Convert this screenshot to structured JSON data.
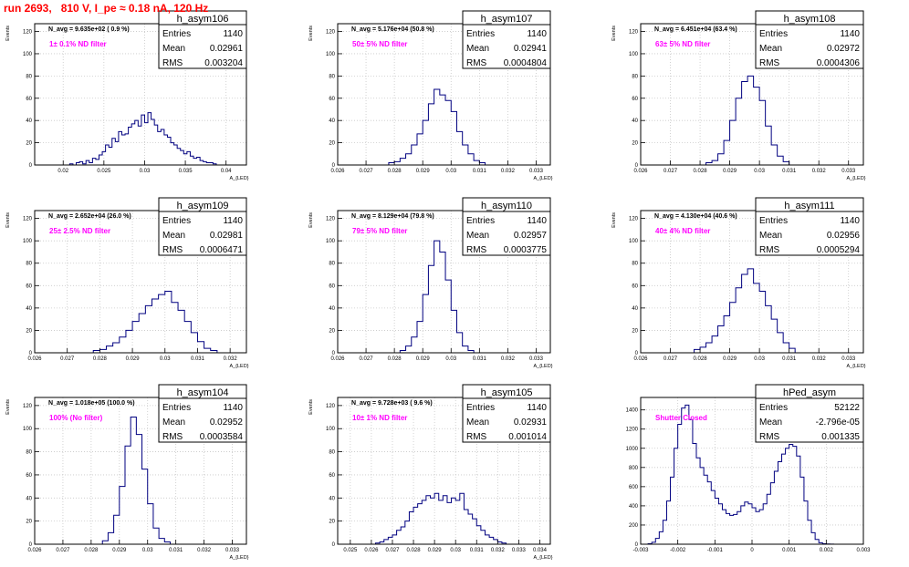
{
  "page_title": "run 2693,   810 V, I_pe ≈ 0.18 nA, 120 Hz",
  "colors": {
    "title": "#ff0000",
    "annotation": "#ff00ff",
    "histogram": "#000080",
    "grid": "#c8c8c8",
    "frame": "#000000"
  },
  "chart_data": [
    {
      "type": "histogram",
      "name": "h_asym106",
      "stats": {
        "Entries": "1140",
        "Mean": "0.02961",
        "RMS": "0.003204"
      },
      "navg": "N_avg = 9.635e+02 ( 0.9 %)",
      "note": "1± 0.1% ND filter",
      "ylabel": "Events",
      "xlabel": "A_{LED}",
      "xticks": [
        {
          "v": 0.02,
          "l": "0.02"
        },
        {
          "v": 0.025,
          "l": "0.025"
        },
        {
          "v": 0.03,
          "l": "0.03"
        },
        {
          "v": 0.035,
          "l": "0.035"
        },
        {
          "v": 0.04,
          "l": "0.04"
        }
      ],
      "yticks": [
        {
          "v": 0,
          "l": "0"
        },
        {
          "v": 20,
          "l": "20"
        },
        {
          "v": 40,
          "l": "40"
        },
        {
          "v": 60,
          "l": "60"
        },
        {
          "v": 80,
          "l": "80"
        },
        {
          "v": 100,
          "l": "100"
        },
        {
          "v": 120,
          "l": "120"
        }
      ],
      "xlim": [
        0.0165,
        0.0425
      ],
      "ylim": [
        0,
        127
      ],
      "x": [
        0.0208,
        0.0212,
        0.0216,
        0.022,
        0.0224,
        0.0228,
        0.0232,
        0.0236,
        0.024,
        0.0244,
        0.0248,
        0.0252,
        0.0256,
        0.026,
        0.0264,
        0.0268,
        0.0272,
        0.0276,
        0.028,
        0.0284,
        0.0288,
        0.0292,
        0.0296,
        0.03,
        0.0304,
        0.0308,
        0.0312,
        0.0316,
        0.032,
        0.0324,
        0.0328,
        0.0332,
        0.0336,
        0.034,
        0.0344,
        0.0348,
        0.0352,
        0.0356,
        0.036,
        0.0364,
        0.0368,
        0.0372,
        0.0376,
        0.038,
        0.0384
      ],
      "values": [
        1,
        0,
        2,
        3,
        1,
        4,
        2,
        6,
        5,
        9,
        12,
        18,
        16,
        24,
        21,
        30,
        27,
        28,
        34,
        37,
        40,
        35,
        45,
        38,
        47,
        41,
        36,
        30,
        32,
        27,
        25,
        20,
        18,
        15,
        13,
        10,
        12,
        8,
        6,
        7,
        4,
        3,
        2,
        2,
        1
      ]
    },
    {
      "type": "histogram",
      "name": "h_asym107",
      "stats": {
        "Entries": "1140",
        "Mean": "0.02941",
        "RMS": "0.0004804"
      },
      "navg": "N_avg = 5.176e+04 (50.8 %)",
      "note": "50± 5% ND filter",
      "ylabel": "Events",
      "xlabel": "A_{LED}",
      "xticks": [
        {
          "v": 0.026,
          "l": "0.026"
        },
        {
          "v": 0.027,
          "l": "0.027"
        },
        {
          "v": 0.028,
          "l": "0.028"
        },
        {
          "v": 0.029,
          "l": "0.029"
        },
        {
          "v": 0.03,
          "l": "0.03"
        },
        {
          "v": 0.031,
          "l": "0.031"
        },
        {
          "v": 0.032,
          "l": "0.032"
        },
        {
          "v": 0.033,
          "l": "0.033"
        }
      ],
      "yticks": [
        {
          "v": 0,
          "l": "0"
        },
        {
          "v": 20,
          "l": "20"
        },
        {
          "v": 40,
          "l": "40"
        },
        {
          "v": 60,
          "l": "60"
        },
        {
          "v": 80,
          "l": "80"
        },
        {
          "v": 100,
          "l": "100"
        },
        {
          "v": 120,
          "l": "120"
        }
      ],
      "xlim": [
        0.026,
        0.0335
      ],
      "ylim": [
        0,
        127
      ],
      "x": [
        0.0278,
        0.028,
        0.0282,
        0.0284,
        0.0286,
        0.0288,
        0.029,
        0.0292,
        0.0294,
        0.0296,
        0.0298,
        0.03,
        0.0302,
        0.0304,
        0.0306,
        0.0308,
        0.031
      ],
      "values": [
        2,
        3,
        6,
        10,
        18,
        28,
        40,
        55,
        68,
        63,
        58,
        48,
        30,
        18,
        10,
        4,
        2
      ]
    },
    {
      "type": "histogram",
      "name": "h_asym108",
      "stats": {
        "Entries": "1140",
        "Mean": "0.02972",
        "RMS": "0.0004306"
      },
      "navg": "N_avg = 6.451e+04 (63.4 %)",
      "note": "63± 5% ND filter",
      "ylabel": "Events",
      "xlabel": "A_{LED}",
      "xticks": [
        {
          "v": 0.026,
          "l": "0.026"
        },
        {
          "v": 0.027,
          "l": "0.027"
        },
        {
          "v": 0.028,
          "l": "0.028"
        },
        {
          "v": 0.029,
          "l": "0.029"
        },
        {
          "v": 0.03,
          "l": "0.03"
        },
        {
          "v": 0.031,
          "l": "0.031"
        },
        {
          "v": 0.032,
          "l": "0.032"
        },
        {
          "v": 0.033,
          "l": "0.033"
        }
      ],
      "yticks": [
        {
          "v": 0,
          "l": "0"
        },
        {
          "v": 20,
          "l": "20"
        },
        {
          "v": 40,
          "l": "40"
        },
        {
          "v": 60,
          "l": "60"
        },
        {
          "v": 80,
          "l": "80"
        },
        {
          "v": 100,
          "l": "100"
        },
        {
          "v": 120,
          "l": "120"
        }
      ],
      "xlim": [
        0.026,
        0.0335
      ],
      "ylim": [
        0,
        127
      ],
      "x": [
        0.0282,
        0.0284,
        0.0286,
        0.0288,
        0.029,
        0.0292,
        0.0294,
        0.0296,
        0.0298,
        0.03,
        0.0302,
        0.0304,
        0.0306,
        0.0308
      ],
      "values": [
        2,
        4,
        10,
        22,
        40,
        60,
        75,
        80,
        70,
        58,
        35,
        18,
        8,
        3
      ]
    },
    {
      "type": "histogram",
      "name": "h_asym109",
      "stats": {
        "Entries": "1140",
        "Mean": "0.02981",
        "RMS": "0.0006471"
      },
      "navg": "N_avg = 2.652e+04 (26.0 %)",
      "note": "25± 2.5% ND filter",
      "ylabel": "Events",
      "xlabel": "A_{LED}",
      "xticks": [
        {
          "v": 0.026,
          "l": "0.026"
        },
        {
          "v": 0.027,
          "l": "0.027"
        },
        {
          "v": 0.028,
          "l": "0.028"
        },
        {
          "v": 0.029,
          "l": "0.029"
        },
        {
          "v": 0.03,
          "l": "0.03"
        },
        {
          "v": 0.031,
          "l": "0.031"
        },
        {
          "v": 0.032,
          "l": "0.032"
        }
      ],
      "yticks": [
        {
          "v": 0,
          "l": "0"
        },
        {
          "v": 20,
          "l": "20"
        },
        {
          "v": 40,
          "l": "40"
        },
        {
          "v": 60,
          "l": "60"
        },
        {
          "v": 80,
          "l": "80"
        },
        {
          "v": 100,
          "l": "100"
        },
        {
          "v": 120,
          "l": "120"
        }
      ],
      "xlim": [
        0.026,
        0.0325
      ],
      "ylim": [
        0,
        127
      ],
      "x": [
        0.0278,
        0.028,
        0.0282,
        0.0284,
        0.0286,
        0.0288,
        0.029,
        0.0292,
        0.0294,
        0.0296,
        0.0298,
        0.03,
        0.0302,
        0.0304,
        0.0306,
        0.0308,
        0.031,
        0.0312,
        0.0314
      ],
      "values": [
        2,
        3,
        6,
        9,
        14,
        20,
        28,
        35,
        42,
        48,
        52,
        55,
        45,
        38,
        28,
        18,
        10,
        4,
        2
      ]
    },
    {
      "type": "histogram",
      "name": "h_asym110",
      "stats": {
        "Entries": "1140",
        "Mean": "0.02957",
        "RMS": "0.0003775"
      },
      "navg": "N_avg = 8.129e+04 (79.8 %)",
      "note": "79± 5% ND filter",
      "ylabel": "Events",
      "xlabel": "A_{LED}",
      "xticks": [
        {
          "v": 0.026,
          "l": "0.026"
        },
        {
          "v": 0.027,
          "l": "0.027"
        },
        {
          "v": 0.028,
          "l": "0.028"
        },
        {
          "v": 0.029,
          "l": "0.029"
        },
        {
          "v": 0.03,
          "l": "0.03"
        },
        {
          "v": 0.031,
          "l": "0.031"
        },
        {
          "v": 0.032,
          "l": "0.032"
        },
        {
          "v": 0.033,
          "l": "0.033"
        }
      ],
      "yticks": [
        {
          "v": 0,
          "l": "0"
        },
        {
          "v": 20,
          "l": "20"
        },
        {
          "v": 40,
          "l": "40"
        },
        {
          "v": 60,
          "l": "60"
        },
        {
          "v": 80,
          "l": "80"
        },
        {
          "v": 100,
          "l": "100"
        },
        {
          "v": 120,
          "l": "120"
        }
      ],
      "xlim": [
        0.026,
        0.0335
      ],
      "ylim": [
        0,
        127
      ],
      "x": [
        0.0282,
        0.0284,
        0.0286,
        0.0288,
        0.029,
        0.0292,
        0.0294,
        0.0296,
        0.0298,
        0.03,
        0.0302,
        0.0304,
        0.0306
      ],
      "values": [
        2,
        6,
        14,
        28,
        52,
        78,
        100,
        90,
        65,
        38,
        18,
        6,
        2
      ]
    },
    {
      "type": "histogram",
      "name": "h_asym111",
      "stats": {
        "Entries": "1140",
        "Mean": "0.02956",
        "RMS": "0.0005294"
      },
      "navg": "N_avg = 4.130e+04 (40.6 %)",
      "note": "40± 4% ND filter",
      "ylabel": "Events",
      "xlabel": "A_{LED}",
      "xticks": [
        {
          "v": 0.026,
          "l": "0.026"
        },
        {
          "v": 0.027,
          "l": "0.027"
        },
        {
          "v": 0.028,
          "l": "0.028"
        },
        {
          "v": 0.029,
          "l": "0.029"
        },
        {
          "v": 0.03,
          "l": "0.03"
        },
        {
          "v": 0.031,
          "l": "0.031"
        },
        {
          "v": 0.032,
          "l": "0.032"
        },
        {
          "v": 0.033,
          "l": "0.033"
        }
      ],
      "yticks": [
        {
          "v": 0,
          "l": "0"
        },
        {
          "v": 20,
          "l": "20"
        },
        {
          "v": 40,
          "l": "40"
        },
        {
          "v": 60,
          "l": "60"
        },
        {
          "v": 80,
          "l": "80"
        },
        {
          "v": 100,
          "l": "100"
        },
        {
          "v": 120,
          "l": "120"
        }
      ],
      "xlim": [
        0.026,
        0.0335
      ],
      "ylim": [
        0,
        127
      ],
      "x": [
        0.0278,
        0.028,
        0.0282,
        0.0284,
        0.0286,
        0.0288,
        0.029,
        0.0292,
        0.0294,
        0.0296,
        0.0298,
        0.03,
        0.0302,
        0.0304,
        0.0306,
        0.0308,
        0.031
      ],
      "values": [
        3,
        5,
        9,
        15,
        24,
        33,
        45,
        58,
        70,
        75,
        62,
        55,
        42,
        30,
        18,
        9,
        4
      ]
    },
    {
      "type": "histogram",
      "name": "h_asym104",
      "stats": {
        "Entries": "1140",
        "Mean": "0.02952",
        "RMS": "0.0003584"
      },
      "navg": "N_avg = 1.018e+05 (100.0 %)",
      "note": "100% (No filter)",
      "ylabel": "Events",
      "xlabel": "A_{LED}",
      "xticks": [
        {
          "v": 0.026,
          "l": "0.026"
        },
        {
          "v": 0.027,
          "l": "0.027"
        },
        {
          "v": 0.028,
          "l": "0.028"
        },
        {
          "v": 0.029,
          "l": "0.029"
        },
        {
          "v": 0.03,
          "l": "0.03"
        },
        {
          "v": 0.031,
          "l": "0.031"
        },
        {
          "v": 0.032,
          "l": "0.032"
        },
        {
          "v": 0.033,
          "l": "0.033"
        }
      ],
      "yticks": [
        {
          "v": 0,
          "l": "0"
        },
        {
          "v": 20,
          "l": "20"
        },
        {
          "v": 40,
          "l": "40"
        },
        {
          "v": 60,
          "l": "60"
        },
        {
          "v": 80,
          "l": "80"
        },
        {
          "v": 100,
          "l": "100"
        },
        {
          "v": 120,
          "l": "120"
        }
      ],
      "xlim": [
        0.026,
        0.0335
      ],
      "ylim": [
        0,
        127
      ],
      "x": [
        0.0284,
        0.0286,
        0.0288,
        0.029,
        0.0292,
        0.0294,
        0.0296,
        0.0298,
        0.03,
        0.0302,
        0.0304,
        0.0306
      ],
      "values": [
        3,
        10,
        25,
        50,
        85,
        110,
        95,
        65,
        35,
        14,
        5,
        2
      ]
    },
    {
      "type": "histogram",
      "name": "h_asym105",
      "stats": {
        "Entries": "1140",
        "Mean": "0.02931",
        "RMS": "0.001014"
      },
      "navg": "N_avg = 9.728e+03 ( 9.6 %)",
      "note": "10± 1% ND filter",
      "ylabel": "Events",
      "xlabel": "A_{LED}",
      "xticks": [
        {
          "v": 0.025,
          "l": "0.025"
        },
        {
          "v": 0.026,
          "l": "0.026"
        },
        {
          "v": 0.027,
          "l": "0.027"
        },
        {
          "v": 0.028,
          "l": "0.028"
        },
        {
          "v": 0.029,
          "l": "0.029"
        },
        {
          "v": 0.03,
          "l": "0.03"
        },
        {
          "v": 0.031,
          "l": "0.031"
        },
        {
          "v": 0.032,
          "l": "0.032"
        },
        {
          "v": 0.033,
          "l": "0.033"
        },
        {
          "v": 0.034,
          "l": "0.034"
        }
      ],
      "yticks": [
        {
          "v": 0,
          "l": "0"
        },
        {
          "v": 20,
          "l": "20"
        },
        {
          "v": 40,
          "l": "40"
        },
        {
          "v": 60,
          "l": "60"
        },
        {
          "v": 80,
          "l": "80"
        },
        {
          "v": 100,
          "l": "100"
        },
        {
          "v": 120,
          "l": "120"
        }
      ],
      "xlim": [
        0.0244,
        0.0345
      ],
      "ylim": [
        0,
        127
      ],
      "x": [
        0.0262,
        0.0264,
        0.0266,
        0.0268,
        0.027,
        0.0272,
        0.0274,
        0.0276,
        0.0278,
        0.028,
        0.0282,
        0.0284,
        0.0286,
        0.0288,
        0.029,
        0.0292,
        0.0294,
        0.0296,
        0.0298,
        0.03,
        0.0302,
        0.0304,
        0.0306,
        0.0308,
        0.031,
        0.0312,
        0.0314,
        0.0316,
        0.0318,
        0.032,
        0.0322
      ],
      "values": [
        1,
        2,
        4,
        6,
        8,
        12,
        15,
        20,
        28,
        32,
        35,
        38,
        42,
        40,
        44,
        38,
        42,
        36,
        40,
        38,
        44,
        30,
        26,
        22,
        16,
        12,
        8,
        6,
        4,
        2,
        1
      ]
    },
    {
      "type": "histogram",
      "name": "hPed_asym",
      "stats": {
        "Entries": "52122",
        "Mean": "-2.796e-05",
        "RMS": "0.001335"
      },
      "navg": "",
      "note": "Shutter Closed",
      "ylabel": "",
      "xlabel": "",
      "xticks": [
        {
          "v": -0.003,
          "l": "-0.003"
        },
        {
          "v": -0.002,
          "l": "-0.002"
        },
        {
          "v": -0.001,
          "l": "-0.001"
        },
        {
          "v": 0,
          "l": "0"
        },
        {
          "v": 0.001,
          "l": "0.001"
        },
        {
          "v": 0.002,
          "l": "0.002"
        },
        {
          "v": 0.003,
          "l": "0.003"
        }
      ],
      "yticks": [
        {
          "v": 0,
          "l": "0"
        },
        {
          "v": 200,
          "l": "200"
        },
        {
          "v": 400,
          "l": "400"
        },
        {
          "v": 600,
          "l": "600"
        },
        {
          "v": 800,
          "l": "800"
        },
        {
          "v": 1000,
          "l": "1000"
        },
        {
          "v": 1200,
          "l": "1200"
        },
        {
          "v": 1400,
          "l": "1400"
        }
      ],
      "xlim": [
        -0.003,
        0.003
      ],
      "ylim": [
        0,
        1530
      ],
      "x": [
        -0.0028,
        -0.0027,
        -0.0026,
        -0.0025,
        -0.0024,
        -0.0023,
        -0.0022,
        -0.0021,
        -0.002,
        -0.0019,
        -0.0018,
        -0.0017,
        -0.0016,
        -0.0015,
        -0.0014,
        -0.0013,
        -0.0012,
        -0.0011,
        -0.001,
        -0.0009,
        -0.0008,
        -0.0007,
        -0.0006,
        -0.0005,
        -0.0004,
        -0.0003,
        -0.0002,
        -0.0001,
        0,
        0.0001,
        0.0002,
        0.0003,
        0.0004,
        0.0005,
        0.0006,
        0.0007,
        0.0008,
        0.0009,
        0.001,
        0.0011,
        0.0012,
        0.0013,
        0.0014,
        0.0015,
        0.0016,
        0.0017,
        0.0018,
        0.0019,
        0.002,
        0.0021,
        0.0022,
        0.0023,
        0.0024,
        0.0025,
        0.0026
      ],
      "values": [
        5,
        20,
        60,
        130,
        250,
        450,
        700,
        1000,
        1250,
        1420,
        1450,
        1300,
        1050,
        900,
        800,
        720,
        650,
        560,
        480,
        420,
        360,
        320,
        300,
        310,
        340,
        400,
        440,
        420,
        380,
        340,
        360,
        420,
        520,
        640,
        760,
        860,
        940,
        1000,
        1040,
        1020,
        920,
        700,
        450,
        250,
        120,
        50,
        15,
        5,
        2,
        1,
        0,
        0,
        0,
        0,
        0
      ]
    }
  ]
}
